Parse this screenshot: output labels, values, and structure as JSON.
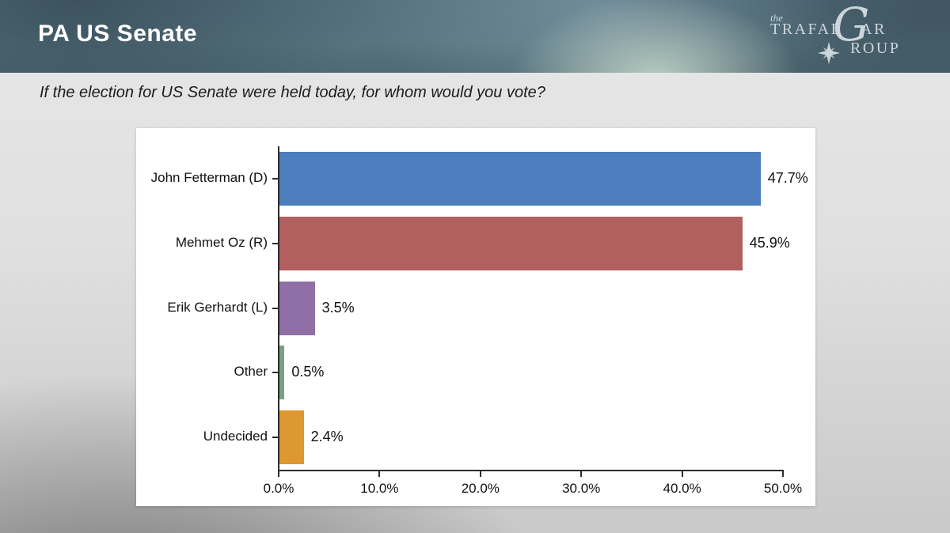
{
  "slide": {
    "title": "PA US Senate",
    "question": "If the election for US Senate were held today, for whom would you vote?"
  },
  "logo": {
    "the": "the",
    "word1": "TRAFAL",
    "big_g": "G",
    "word2": "AR",
    "word3": "ROUP",
    "star_icon": "compass-star",
    "color": "#ccd6db"
  },
  "colors": {
    "header_base": "#55707f",
    "panel_bg": "#ffffff",
    "axis": "#2b2b2b",
    "text": "#111111",
    "background_top": "#e7e7e7",
    "background_bottom_left": "#989898"
  },
  "chart_data": {
    "type": "bar",
    "orientation": "horizontal",
    "title": "",
    "xlabel": "",
    "ylabel": "",
    "grid": false,
    "legend": "none",
    "categories": [
      "John Fetterman (D)",
      "Mehmet Oz (R)",
      "Erik Gerhardt (L)",
      "Other",
      "Undecided"
    ],
    "values": [
      47.7,
      45.9,
      3.5,
      0.5,
      2.4
    ],
    "value_labels": [
      "47.7%",
      "45.9%",
      "3.5%",
      "0.5%",
      "2.4%"
    ],
    "bar_colors": [
      "#4D7FBE",
      "#B25F5F",
      "#906FA7",
      "#7AA184",
      "#DD9831"
    ],
    "xlim": [
      0,
      50
    ],
    "x_tick_values": [
      0,
      10,
      20,
      30,
      40,
      50
    ],
    "x_tick_labels": [
      "0.0%",
      "10.0%",
      "20.0%",
      "30.0%",
      "40.0%",
      "50.0%"
    ]
  }
}
